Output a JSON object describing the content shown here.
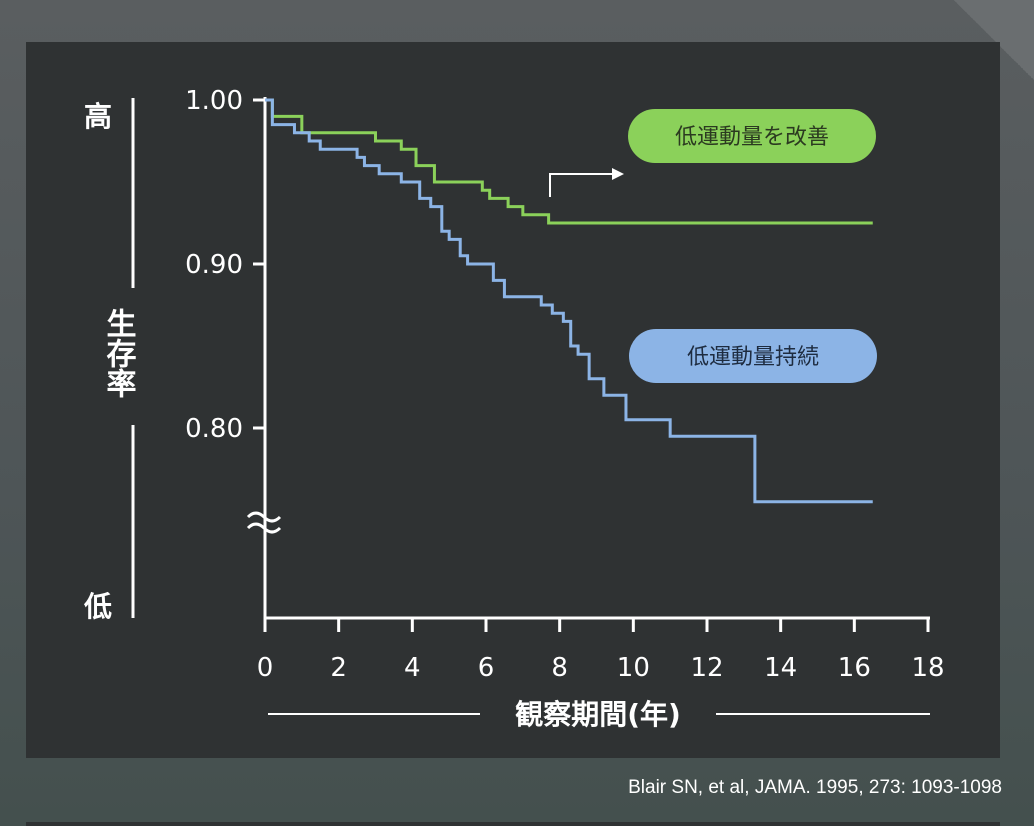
{
  "chart_data": {
    "type": "line",
    "xlabel": "観察期間(年)",
    "ylabel": "生存率",
    "y_high_label": "高",
    "y_low_label": "低",
    "xlim": [
      0,
      18
    ],
    "ylim": [
      0.7,
      1.0
    ],
    "x_ticks": [
      "0",
      "2",
      "4",
      "6",
      "8",
      "10",
      "12",
      "14",
      "16",
      "18"
    ],
    "y_ticks": [
      "1.00",
      "0.90",
      "0.80"
    ],
    "y_break": true,
    "grid": false,
    "series": [
      {
        "name": "低運動量を改善",
        "color": "#8bd15a",
        "points": [
          [
            0,
            1.0
          ],
          [
            0.2,
            0.99
          ],
          [
            1,
            0.98
          ],
          [
            2,
            0.98
          ],
          [
            2.9,
            0.98
          ],
          [
            3,
            0.975
          ],
          [
            3.7,
            0.97
          ],
          [
            4.1,
            0.96
          ],
          [
            4.6,
            0.95
          ],
          [
            5.5,
            0.95
          ],
          [
            5.9,
            0.945
          ],
          [
            6.1,
            0.94
          ],
          [
            6.6,
            0.935
          ],
          [
            7.0,
            0.93
          ],
          [
            7.6,
            0.93
          ],
          [
            7.7,
            0.925
          ],
          [
            10,
            0.925
          ],
          [
            16.5,
            0.925
          ]
        ]
      },
      {
        "name": "低運動量持続",
        "color": "#8cb4e6",
        "points": [
          [
            0,
            1.0
          ],
          [
            0.2,
            0.985
          ],
          [
            0.8,
            0.98
          ],
          [
            1.2,
            0.975
          ],
          [
            1.5,
            0.97
          ],
          [
            2.5,
            0.965
          ],
          [
            2.7,
            0.96
          ],
          [
            3.1,
            0.955
          ],
          [
            3.7,
            0.95
          ],
          [
            4.2,
            0.94
          ],
          [
            4.5,
            0.935
          ],
          [
            4.8,
            0.92
          ],
          [
            5.0,
            0.915
          ],
          [
            5.3,
            0.905
          ],
          [
            5.5,
            0.9
          ],
          [
            6.2,
            0.89
          ],
          [
            6.5,
            0.88
          ],
          [
            7.5,
            0.875
          ],
          [
            7.8,
            0.87
          ],
          [
            8.1,
            0.865
          ],
          [
            8.3,
            0.85
          ],
          [
            8.5,
            0.845
          ],
          [
            8.8,
            0.83
          ],
          [
            9.2,
            0.82
          ],
          [
            9.8,
            0.805
          ],
          [
            11.0,
            0.795
          ],
          [
            12.2,
            0.795
          ],
          [
            13.3,
            0.79
          ],
          [
            13.3,
            0.755
          ],
          [
            16.5,
            0.755
          ]
        ]
      }
    ],
    "annotations": {
      "improved_label": "低運動量を改善",
      "persistent_label": "低運動量持続"
    }
  },
  "citation": "Blair SN, et al, JAMA. 1995, 273: 1093-1098",
  "colors": {
    "panel": "#2f3233",
    "green": "#8bd15a",
    "blue": "#8cb4e6",
    "axis": "#ffffff"
  }
}
